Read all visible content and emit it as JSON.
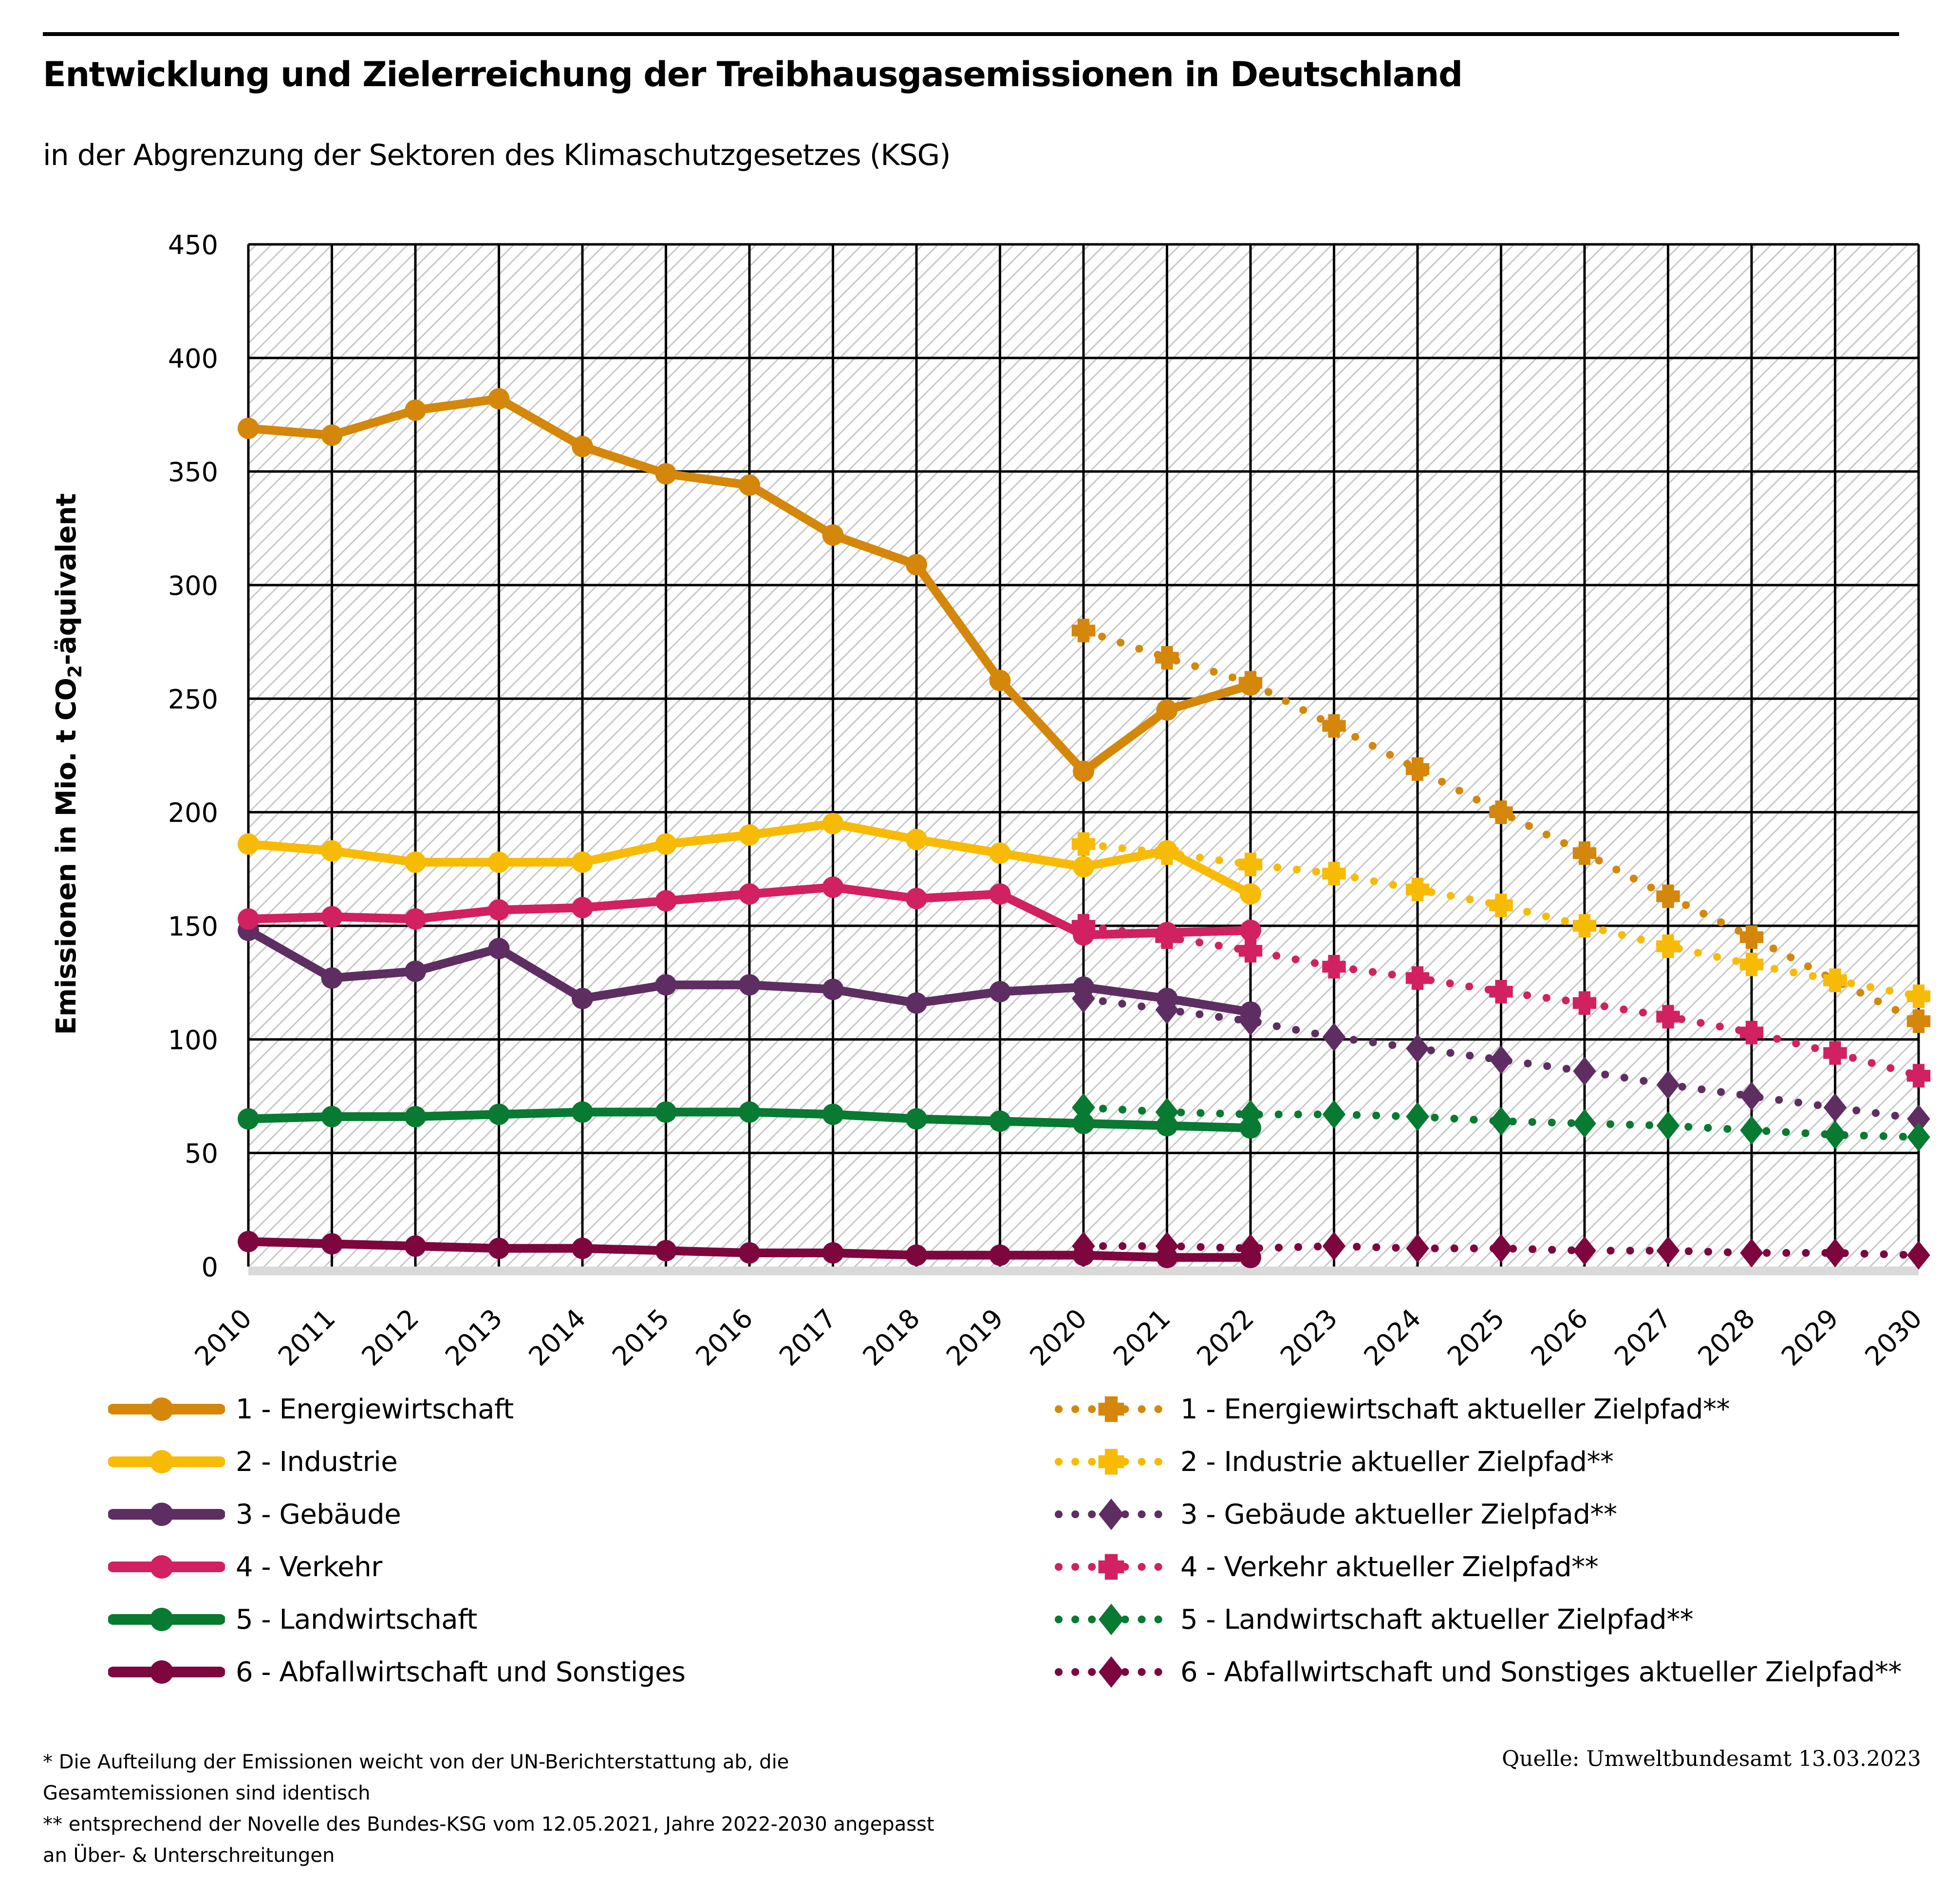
{
  "header": {
    "title": "Entwicklung und Zielerreichung der Treibhausgasemissionen in Deutschland",
    "subtitle": "in der Abgrenzung der Sektoren des Klimaschutzgesetzes (KSG)"
  },
  "footnotes": [
    "* Die Aufteilung der Emissionen weicht von der UN-Berichterstattung ab, die",
    "Gesamtemissionen sind identisch",
    "** entsprechend der Novelle des Bundes-KSG vom 12.05.2021, Jahre 2022-2030 angepasst",
    "an Über- & Unterschreitungen"
  ],
  "source": "Quelle: Umweltbundesamt  13.03.2023",
  "chart_data": {
    "type": "line",
    "title": "Entwicklung und Zielerreichung der Treibhausgasemissionen in Deutschland",
    "subtitle": "in der Abgrenzung der Sektoren des Klimaschutzgesetzes (KSG)",
    "xlabel": "",
    "ylabel_prefix": "Emissionen in Mio. t CO",
    "ylabel_sub": "2",
    "ylabel_suffix": "-äquivalent",
    "ylabel": "Emissionen in Mio. t CO2-äquivalent",
    "ylim": [
      0,
      450
    ],
    "yticks": [
      0,
      50,
      100,
      150,
      200,
      250,
      300,
      350,
      400,
      450
    ],
    "x": [
      "2010",
      "2011",
      "2012",
      "2013",
      "2014",
      "2015",
      "2016",
      "2017",
      "2018",
      "2019",
      "2020",
      "2021",
      "2022",
      "2023",
      "2024",
      "2025",
      "2026",
      "2027",
      "2028",
      "2029",
      "2030"
    ],
    "grid": true,
    "background": "diagonal-hatch",
    "legend_position": "bottom",
    "series": [
      {
        "name": "1 - Energiewirtschaft",
        "color": "#D4870A",
        "style": "solid",
        "marker": "circle",
        "start": "2010",
        "values": [
          369,
          366,
          377,
          382,
          361,
          349,
          344,
          322,
          309,
          258,
          218,
          245,
          256
        ]
      },
      {
        "name": "2 - Industrie",
        "color": "#F8BB05",
        "style": "solid",
        "marker": "circle",
        "start": "2010",
        "values": [
          186,
          183,
          178,
          178,
          178,
          186,
          190,
          195,
          188,
          182,
          176,
          183,
          164
        ]
      },
      {
        "name": "3 - Gebäude",
        "color": "#5E2E62",
        "style": "solid",
        "marker": "circle",
        "start": "2010",
        "values": [
          148,
          127,
          130,
          140,
          118,
          124,
          124,
          122,
          116,
          121,
          123,
          118,
          112
        ]
      },
      {
        "name": "4 - Verkehr",
        "color": "#D12160",
        "style": "solid",
        "marker": "circle",
        "start": "2010",
        "values": [
          153,
          154,
          153,
          157,
          158,
          161,
          164,
          167,
          162,
          164,
          146,
          147,
          148
        ]
      },
      {
        "name": "5 - Landwirtschaft",
        "color": "#087A31",
        "style": "solid",
        "marker": "circle",
        "start": "2010",
        "values": [
          65,
          66,
          66,
          67,
          68,
          68,
          68,
          67,
          65,
          64,
          63,
          62,
          61
        ]
      },
      {
        "name": "6 - Abfallwirtschaft und Sonstiges",
        "color": "#7E063E",
        "style": "solid",
        "marker": "circle",
        "start": "2010",
        "values": [
          11,
          10,
          9,
          8,
          8,
          7,
          6,
          6,
          5,
          5,
          5,
          4,
          4
        ]
      },
      {
        "name": "1 - Energiewirtschaft aktueller Zielpfad**",
        "color": "#D4870A",
        "style": "dotted",
        "marker": "plus",
        "start": "2020",
        "values": [
          280,
          268,
          257,
          238,
          219,
          200,
          182,
          163,
          145,
          126,
          108
        ]
      },
      {
        "name": "2 - Industrie aktueller Zielpfad**",
        "color": "#F8BB05",
        "style": "dotted",
        "marker": "plus",
        "start": "2020",
        "values": [
          186,
          182,
          177,
          173,
          166,
          159,
          150,
          141,
          133,
          126,
          119
        ]
      },
      {
        "name": "3 - Gebäude aktueller Zielpfad**",
        "color": "#5E2E62",
        "style": "dotted",
        "marker": "diamond",
        "start": "2020",
        "values": [
          118,
          113,
          108,
          101,
          96,
          91,
          86,
          80,
          75,
          70,
          65
        ]
      },
      {
        "name": "4 - Verkehr aktueller Zielpfad**",
        "color": "#D12160",
        "style": "dotted",
        "marker": "plus",
        "start": "2020",
        "values": [
          150,
          145,
          139,
          132,
          127,
          121,
          116,
          110,
          103,
          94,
          84
        ]
      },
      {
        "name": "5 - Landwirtschaft aktueller Zielpfad**",
        "color": "#087A31",
        "style": "dotted",
        "marker": "diamond",
        "start": "2020",
        "values": [
          70,
          68,
          67,
          67,
          66,
          64,
          63,
          62,
          60,
          58,
          57
        ]
      },
      {
        "name": "6 - Abfallwirtschaft und Sonstiges aktueller Zielpfad**",
        "color": "#7E063E",
        "style": "dotted",
        "marker": "diamond",
        "start": "2020",
        "values": [
          9,
          9,
          8,
          9,
          8,
          8,
          7,
          7,
          6,
          6,
          5
        ]
      }
    ]
  }
}
